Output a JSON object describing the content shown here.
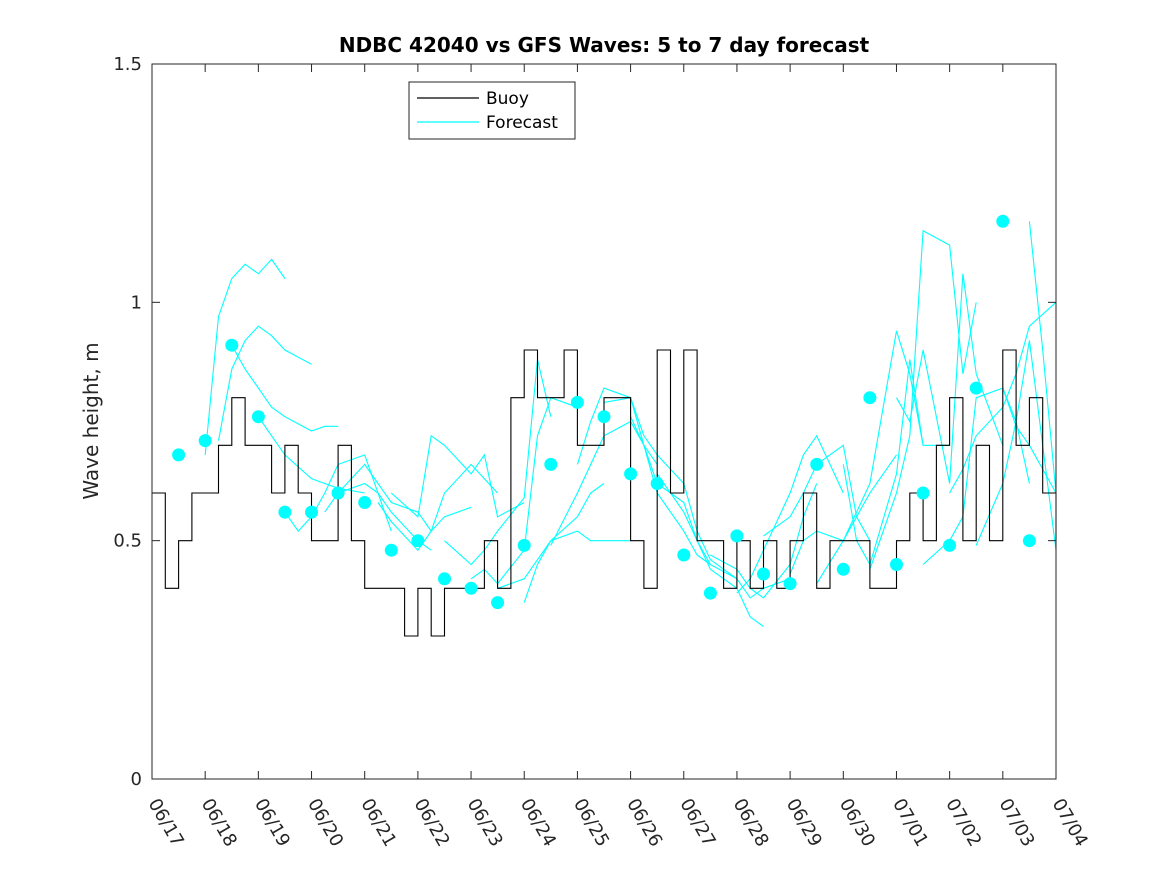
{
  "chart_data": {
    "type": "line",
    "title": "NDBC 42040 vs GFS Waves: 5 to 7 day forecast",
    "xlabel": "",
    "ylabel": "Wave height, m",
    "xlim": [
      "06/17",
      "07/04"
    ],
    "ylim": [
      0,
      1.5
    ],
    "grid": false,
    "legend_position": "top-left",
    "x_ticks": [
      "06/17",
      "06/18",
      "06/19",
      "06/20",
      "06/21",
      "06/22",
      "06/23",
      "06/24",
      "06/25",
      "06/26",
      "06/27",
      "06/28",
      "06/29",
      "06/30",
      "07/01",
      "07/02",
      "07/03",
      "07/04"
    ],
    "y_ticks": [
      "0",
      "0.5",
      "1",
      "1.5"
    ],
    "colors": {
      "buoy": "#000000",
      "forecast": "#00ffff",
      "axes": "#262626"
    },
    "legend": [
      {
        "label": "Buoy",
        "color": "#000000"
      },
      {
        "label": "Forecast",
        "color": "#00ffff"
      }
    ],
    "buoy": {
      "x": [
        "06/17 00:00",
        "06/17 06:00",
        "06/17 12:00",
        "06/17 18:00",
        "06/18 00:00",
        "06/18 06:00",
        "06/18 12:00",
        "06/18 18:00",
        "06/19 00:00",
        "06/19 06:00",
        "06/19 12:00",
        "06/19 18:00",
        "06/20 00:00",
        "06/20 06:00",
        "06/20 12:00",
        "06/20 18:00",
        "06/21 00:00",
        "06/21 06:00",
        "06/21 12:00",
        "06/21 18:00",
        "06/22 00:00",
        "06/22 06:00",
        "06/22 12:00",
        "06/22 18:00",
        "06/23 00:00",
        "06/23 06:00",
        "06/23 12:00",
        "06/23 18:00",
        "06/24 00:00",
        "06/24 06:00",
        "06/24 12:00",
        "06/24 18:00",
        "06/25 00:00",
        "06/25 06:00",
        "06/25 12:00",
        "06/25 18:00",
        "06/26 00:00",
        "06/26 06:00",
        "06/26 12:00",
        "06/26 18:00",
        "06/27 00:00",
        "06/27 06:00",
        "06/27 12:00",
        "06/27 18:00",
        "06/28 00:00",
        "06/28 06:00",
        "06/28 12:00",
        "06/28 18:00",
        "06/29 00:00",
        "06/29 06:00",
        "06/29 12:00",
        "06/29 18:00",
        "06/30 00:00",
        "06/30 06:00",
        "06/30 12:00",
        "06/30 18:00",
        "07/01 00:00",
        "07/01 06:00",
        "07/01 12:00",
        "07/01 18:00",
        "07/02 00:00",
        "07/02 06:00",
        "07/02 12:00",
        "07/02 18:00",
        "07/03 00:00",
        "07/03 06:00",
        "07/03 12:00",
        "07/03 18:00",
        "07/04 00:00"
      ],
      "y": [
        0.6,
        0.4,
        0.5,
        0.6,
        0.6,
        0.7,
        0.8,
        0.7,
        0.7,
        0.6,
        0.7,
        0.6,
        0.5,
        0.5,
        0.7,
        0.5,
        0.4,
        0.4,
        0.4,
        0.3,
        0.4,
        0.3,
        0.4,
        0.4,
        0.4,
        0.5,
        0.4,
        0.8,
        0.9,
        0.8,
        0.8,
        0.9,
        0.7,
        0.7,
        0.8,
        0.8,
        0.5,
        0.4,
        0.9,
        0.6,
        0.9,
        0.5,
        0.5,
        0.4,
        0.5,
        0.4,
        0.5,
        0.4,
        0.5,
        0.6,
        0.4,
        0.5,
        0.5,
        0.5,
        0.4,
        0.4,
        0.5,
        0.6,
        0.5,
        0.7,
        0.8,
        0.5,
        0.7,
        0.5,
        0.9,
        0.7,
        0.8,
        0.6,
        0.5
      ]
    },
    "forecast_points": {
      "x": [
        "06/17 12:00",
        "06/18 00:00",
        "06/18 12:00",
        "06/19 00:00",
        "06/19 12:00",
        "06/20 00:00",
        "06/20 12:00",
        "06/21 00:00",
        "06/21 12:00",
        "06/22 00:00",
        "06/22 12:00",
        "06/23 00:00",
        "06/23 12:00",
        "06/24 00:00",
        "06/24 12:00",
        "06/25 00:00",
        "06/25 12:00",
        "06/26 00:00",
        "06/26 12:00",
        "06/27 00:00",
        "06/27 12:00",
        "06/28 00:00",
        "06/28 12:00",
        "06/29 00:00",
        "06/29 12:00",
        "06/30 00:00",
        "06/30 12:00",
        "07/01 00:00",
        "07/01 12:00",
        "07/02 00:00",
        "07/02 12:00",
        "07/03 00:00",
        "07/03 12:00"
      ],
      "y": [
        0.68,
        0.71,
        0.91,
        0.76,
        0.56,
        0.56,
        0.6,
        0.58,
        0.48,
        0.5,
        0.42,
        0.4,
        0.37,
        0.49,
        0.66,
        0.79,
        0.76,
        0.64,
        0.62,
        0.47,
        0.39,
        0.51,
        0.43,
        0.41,
        0.66,
        0.44,
        0.8,
        0.45,
        0.6,
        0.49,
        0.82,
        1.17,
        0.5
      ]
    },
    "forecast_runs": [
      {
        "x": [
          "06/18 00:00",
          "06/18 06:00",
          "06/18 12:00",
          "06/18 18:00",
          "06/19 00:00",
          "06/19 06:00",
          "06/19 12:00"
        ],
        "y": [
          0.68,
          0.97,
          1.05,
          1.08,
          1.06,
          1.09,
          1.05
        ]
      },
      {
        "x": [
          "06/18 06:00",
          "06/18 12:00",
          "06/18 18:00",
          "06/19 00:00",
          "06/19 06:00",
          "06/19 12:00",
          "06/20 00:00"
        ],
        "y": [
          0.71,
          0.86,
          0.92,
          0.95,
          0.93,
          0.9,
          0.87
        ]
      },
      {
        "x": [
          "06/18 12:00",
          "06/18 18:00",
          "06/19 00:00",
          "06/19 06:00",
          "06/19 12:00",
          "06/20 00:00",
          "06/20 06:00",
          "06/20 12:00"
        ],
        "y": [
          0.91,
          0.86,
          0.82,
          0.78,
          0.76,
          0.73,
          0.74,
          0.74
        ]
      },
      {
        "x": [
          "06/19 00:00",
          "06/19 06:00",
          "06/19 12:00",
          "06/20 00:00",
          "06/20 06:00",
          "06/20 12:00",
          "06/21 00:00"
        ],
        "y": [
          0.76,
          0.72,
          0.68,
          0.63,
          0.62,
          0.61,
          0.6
        ]
      },
      {
        "x": [
          "06/19 12:00",
          "06/19 18:00",
          "06/20 00:00",
          "06/20 06:00",
          "06/20 12:00",
          "06/21 00:00",
          "06/21 06:00",
          "06/21 12:00"
        ],
        "y": [
          0.56,
          0.52,
          0.55,
          0.6,
          0.66,
          0.68,
          0.6,
          0.52
        ]
      },
      {
        "x": [
          "06/20 06:00",
          "06/20 12:00",
          "06/21 00:00",
          "06/21 06:00",
          "06/21 12:00",
          "06/22 00:00",
          "06/22 06:00"
        ],
        "y": [
          0.56,
          0.6,
          0.62,
          0.6,
          0.56,
          0.5,
          0.48
        ]
      },
      {
        "x": [
          "06/20 12:00",
          "06/21 00:00",
          "06/21 06:00",
          "06/21 12:00",
          "06/22 00:00",
          "06/22 06:00",
          "06/22 12:00",
          "06/23 00:00"
        ],
        "y": [
          0.6,
          0.66,
          0.62,
          0.58,
          0.56,
          0.52,
          0.55,
          0.57
        ]
      },
      {
        "x": [
          "06/21 06:00",
          "06/21 12:00",
          "06/22 00:00",
          "06/22 06:00",
          "06/22 12:00",
          "06/23 00:00",
          "06/23 06:00",
          "06/23 12:00"
        ],
        "y": [
          0.58,
          0.54,
          0.48,
          0.52,
          0.6,
          0.66,
          0.63,
          0.6
        ]
      },
      {
        "x": [
          "06/21 12:00",
          "06/22 00:00",
          "06/22 06:00",
          "06/22 12:00",
          "06/23 00:00",
          "06/23 06:00",
          "06/23 12:00",
          "06/24 00:00"
        ],
        "y": [
          0.6,
          0.55,
          0.72,
          0.7,
          0.64,
          0.68,
          0.55,
          0.58
        ]
      },
      {
        "x": [
          "06/22 12:00",
          "06/23 00:00",
          "06/23 06:00",
          "06/23 12:00",
          "06/24 00:00",
          "06/24 06:00",
          "06/24 12:00"
        ],
        "y": [
          0.5,
          0.45,
          0.48,
          0.52,
          0.59,
          0.88,
          0.76
        ]
      },
      {
        "x": [
          "06/23 00:00",
          "06/23 06:00",
          "06/23 12:00",
          "06/24 00:00",
          "06/24 06:00",
          "06/24 12:00",
          "06/25 00:00"
        ],
        "y": [
          0.42,
          0.44,
          0.41,
          0.48,
          0.72,
          0.8,
          0.78
        ]
      },
      {
        "x": [
          "06/23 12:00",
          "06/24 00:00",
          "06/24 06:00",
          "06/24 12:00",
          "06/25 00:00",
          "06/25 06:00",
          "06/25 12:00"
        ],
        "y": [
          0.4,
          0.42,
          0.46,
          0.5,
          0.55,
          0.6,
          0.62
        ]
      },
      {
        "x": [
          "06/24 00:00",
          "06/24 06:00",
          "06/24 12:00",
          "06/25 00:00",
          "06/25 06:00",
          "06/25 12:00",
          "06/26 00:00"
        ],
        "y": [
          0.37,
          0.45,
          0.5,
          0.52,
          0.5,
          0.5,
          0.5
        ]
      },
      {
        "x": [
          "06/24 12:00",
          "06/25 00:00",
          "06/25 06:00",
          "06/25 12:00",
          "06/26 00:00",
          "06/26 06:00",
          "06/26 12:00"
        ],
        "y": [
          0.49,
          0.6,
          0.66,
          0.72,
          0.75,
          0.7,
          0.66
        ]
      },
      {
        "x": [
          "06/25 00:00",
          "06/25 06:00",
          "06/25 12:00",
          "06/26 00:00",
          "06/26 06:00",
          "06/26 12:00",
          "06/27 00:00"
        ],
        "y": [
          0.66,
          0.75,
          0.82,
          0.8,
          0.72,
          0.68,
          0.62
        ]
      },
      {
        "x": [
          "06/25 12:00",
          "06/26 00:00",
          "06/26 06:00",
          "06/26 12:00",
          "06/27 00:00",
          "06/27 06:00",
          "06/27 12:00"
        ],
        "y": [
          0.79,
          0.8,
          0.7,
          0.62,
          0.58,
          0.5,
          0.45
        ]
      },
      {
        "x": [
          "06/26 00:00",
          "06/26 06:00",
          "06/26 12:00",
          "06/27 00:00",
          "06/27 06:00",
          "06/27 12:00",
          "06/28 00:00"
        ],
        "y": [
          0.76,
          0.7,
          0.6,
          0.52,
          0.47,
          0.45,
          0.42
        ]
      },
      {
        "x": [
          "06/26 12:00",
          "06/27 00:00",
          "06/27 06:00",
          "06/27 12:00",
          "06/28 00:00",
          "06/28 06:00",
          "06/28 12:00"
        ],
        "y": [
          0.64,
          0.56,
          0.5,
          0.44,
          0.4,
          0.34,
          0.32
        ]
      },
      {
        "x": [
          "06/27 00:00",
          "06/27 06:00",
          "06/27 12:00",
          "06/28 00:00",
          "06/28 06:00",
          "06/28 12:00",
          "06/29 00:00"
        ],
        "y": [
          0.62,
          0.52,
          0.46,
          0.42,
          0.38,
          0.4,
          0.42
        ]
      },
      {
        "x": [
          "06/27 12:00",
          "06/28 00:00",
          "06/28 06:00",
          "06/28 12:00",
          "06/29 00:00",
          "06/29 06:00",
          "06/29 12:00"
        ],
        "y": [
          0.47,
          0.44,
          0.4,
          0.38,
          0.45,
          0.55,
          0.62
        ]
      },
      {
        "x": [
          "06/28 00:00",
          "06/28 06:00",
          "06/28 12:00",
          "06/29 00:00",
          "06/29 06:00",
          "06/29 12:00",
          "06/30 00:00"
        ],
        "y": [
          0.39,
          0.42,
          0.48,
          0.6,
          0.68,
          0.72,
          0.6
        ]
      },
      {
        "x": [
          "06/28 12:00",
          "06/29 00:00",
          "06/29 06:00",
          "06/29 12:00",
          "06/30 00:00",
          "06/30 06:00",
          "06/30 12:00"
        ],
        "y": [
          0.51,
          0.55,
          0.6,
          0.66,
          0.7,
          0.55,
          0.5
        ]
      },
      {
        "x": [
          "06/29 00:00",
          "06/29 06:00",
          "06/29 12:00",
          "06/30 00:00",
          "06/30 06:00",
          "06/30 12:00",
          "07/01 00:00"
        ],
        "y": [
          0.43,
          0.5,
          0.52,
          0.5,
          0.55,
          0.6,
          0.68
        ]
      },
      {
        "x": [
          "06/29 12:00",
          "06/30 00:00",
          "06/30 06:00",
          "06/30 12:00",
          "07/01 00:00",
          "07/01 06:00",
          "07/01 12:00"
        ],
        "y": [
          0.41,
          0.5,
          0.56,
          0.62,
          0.94,
          0.85,
          0.7
        ]
      },
      {
        "x": [
          "06/30 00:00",
          "06/30 06:00",
          "06/30 12:00",
          "07/01 00:00",
          "07/01 06:00",
          "07/01 12:00",
          "07/02 00:00"
        ],
        "y": [
          0.66,
          0.5,
          0.45,
          0.64,
          0.88,
          0.7,
          0.7
        ]
      },
      {
        "x": [
          "06/30 12:00",
          "07/01 00:00",
          "07/01 06:00",
          "07/01 12:00",
          "07/02 00:00",
          "07/02 06:00",
          "07/02 12:00"
        ],
        "y": [
          0.44,
          0.6,
          0.72,
          1.15,
          1.12,
          0.85,
          1.0
        ]
      },
      {
        "x": [
          "07/01 00:00",
          "07/01 06:00",
          "07/01 12:00",
          "07/02 00:00",
          "07/02 06:00",
          "07/02 12:00",
          "07/03 00:00"
        ],
        "y": [
          0.8,
          0.75,
          0.9,
          0.62,
          1.06,
          0.85,
          0.7
        ]
      },
      {
        "x": [
          "07/01 12:00",
          "07/02 00:00",
          "07/02 06:00",
          "07/02 12:00",
          "07/03 00:00",
          "07/03 06:00",
          "07/03 12:00"
        ],
        "y": [
          0.45,
          0.5,
          0.55,
          0.8,
          0.82,
          0.75,
          0.62
        ]
      },
      {
        "x": [
          "07/02 00:00",
          "07/02 06:00",
          "07/02 12:00",
          "07/03 00:00",
          "07/03 06:00",
          "07/03 12:00",
          "07/04 00:00"
        ],
        "y": [
          0.6,
          0.65,
          0.72,
          0.78,
          0.85,
          0.95,
          1.0
        ]
      },
      {
        "x": [
          "07/02 12:00",
          "07/03 00:00",
          "07/03 06:00",
          "07/03 12:00",
          "07/04 00:00"
        ],
        "y": [
          0.49,
          0.62,
          0.75,
          0.92,
          0.48
        ]
      },
      {
        "x": [
          "07/03 00:00",
          "07/03 06:00",
          "07/03 12:00",
          "07/04 00:00"
        ],
        "y": [
          0.82,
          0.74,
          0.7,
          0.6
        ]
      },
      {
        "x": [
          "07/03 12:00",
          "07/03 18:00",
          "07/04 00:00"
        ],
        "y": [
          1.17,
          0.9,
          0.6
        ]
      }
    ]
  }
}
